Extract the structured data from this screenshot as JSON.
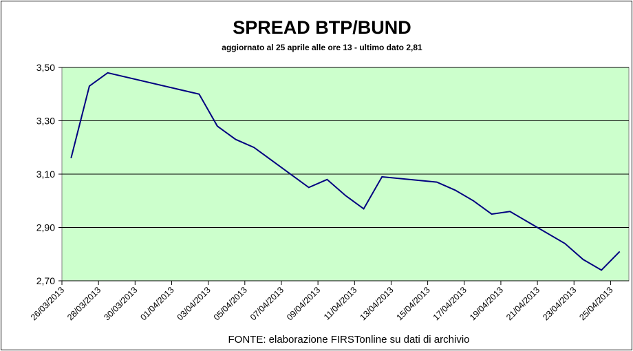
{
  "chart_data": {
    "type": "line",
    "title": "SPREAD  BTP/BUND",
    "subtitle": "aggiornato al 25 aprile alle ore 13 - ultimo dato 2,81",
    "source": "FONTE: elaborazione FIRSTonline su dati di archivio",
    "ylim": [
      2.7,
      3.5
    ],
    "y_ticks": [
      "2,70",
      "2,90",
      "3,10",
      "3,30",
      "3,50"
    ],
    "x_ticks": [
      "26/03/2013",
      "28/03/2013",
      "30/03/2013",
      "01/04/2013",
      "03/04/2013",
      "05/04/2013",
      "07/04/2013",
      "09/04/2013",
      "11/04/2013",
      "13/04/2013",
      "15/04/2013",
      "17/04/2013",
      "19/04/2013",
      "21/04/2013",
      "23/04/2013",
      "25/04/2013"
    ],
    "x_range": [
      "26/03/2013",
      "26/04/2013"
    ],
    "grid": true,
    "plot_background": "#ccffcc",
    "line_color": "#000080",
    "series": [
      {
        "x": [
          "26/03/2013",
          "27/03/2013",
          "28/03/2013",
          "02/04/2013",
          "03/04/2013",
          "04/04/2013",
          "05/04/2013",
          "08/04/2013",
          "09/04/2013",
          "10/04/2013",
          "11/04/2013",
          "12/04/2013",
          "15/04/2013",
          "16/04/2013",
          "17/04/2013",
          "18/04/2013",
          "19/04/2013",
          "22/04/2013",
          "23/04/2013",
          "24/04/2013",
          "25/04/2013"
        ],
        "values": [
          3.16,
          3.43,
          3.48,
          3.4,
          3.28,
          3.23,
          3.2,
          3.05,
          3.08,
          3.02,
          2.97,
          3.09,
          3.07,
          3.04,
          3.0,
          2.95,
          2.96,
          2.84,
          2.78,
          2.74,
          2.81
        ]
      }
    ]
  }
}
